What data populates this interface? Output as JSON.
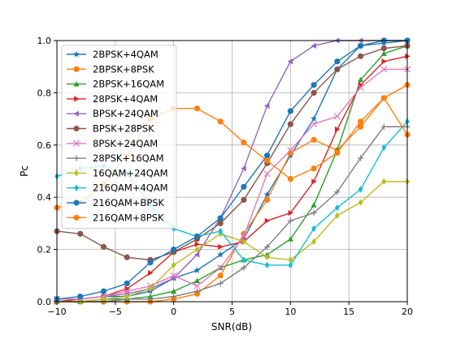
{
  "chart_data": {
    "type": "line",
    "xlabel": "SNR(dB)",
    "ylabel": "Pc",
    "xlim": [
      -10,
      20
    ],
    "ylim": [
      0,
      1
    ],
    "xticks": [
      -10,
      -5,
      0,
      5,
      10,
      15,
      20
    ],
    "yticks": [
      0.0,
      0.2,
      0.4,
      0.6,
      0.8,
      1.0
    ],
    "xtick_labels": [
      "−10",
      "−5",
      "0",
      "5",
      "10",
      "15",
      "20"
    ],
    "ytick_labels": [
      "0.0",
      "0.2",
      "0.4",
      "0.6",
      "0.8",
      "1.0"
    ],
    "grid": true,
    "legend_position": "upper-left",
    "x": [
      -10,
      -8,
      -6,
      -4,
      -2,
      0,
      2,
      4,
      6,
      8,
      10,
      12,
      14,
      16,
      18,
      20
    ],
    "series": [
      {
        "name": "2BPSK+4QAM",
        "color": "#1f77b4",
        "marker": "star",
        "values": [
          0.01,
          0.01,
          0.02,
          0.02,
          0.04,
          0.09,
          0.12,
          0.18,
          0.24,
          0.41,
          0.56,
          0.7,
          0.89,
          0.98,
          0.99,
          1.0
        ]
      },
      {
        "name": "2BPSK+8PSK",
        "color": "#ff7f0e",
        "marker": "circle",
        "values": [
          0.0,
          0.0,
          0.0,
          0.0,
          0.0,
          0.01,
          0.03,
          0.1,
          0.26,
          0.39,
          0.57,
          0.62,
          0.58,
          0.67,
          0.78,
          0.83
        ]
      },
      {
        "name": "2BPSK+16QAM",
        "color": "#2ca02c",
        "marker": "triangle-up",
        "values": [
          0.0,
          0.0,
          0.01,
          0.01,
          0.02,
          0.04,
          0.08,
          0.13,
          0.16,
          0.18,
          0.24,
          0.37,
          0.58,
          0.85,
          0.95,
          0.98
        ]
      },
      {
        "name": "28PSK+4QAM",
        "color": "#d62728",
        "marker": "triangle-right",
        "values": [
          0.0,
          0.01,
          0.02,
          0.05,
          0.11,
          0.19,
          0.22,
          0.21,
          0.23,
          0.31,
          0.34,
          0.46,
          0.66,
          0.83,
          0.92,
          0.94
        ]
      },
      {
        "name": "BPSK+24QAM",
        "color": "#9467bd",
        "marker": "triangle-left",
        "values": [
          0.01,
          0.01,
          0.02,
          0.03,
          0.05,
          0.09,
          0.18,
          0.32,
          0.51,
          0.75,
          0.92,
          0.98,
          1.0,
          1.0,
          1.0,
          1.0
        ]
      },
      {
        "name": "BPSK+28PSK",
        "color": "#8c564b",
        "marker": "circle",
        "values": [
          0.27,
          0.26,
          0.21,
          0.17,
          0.16,
          0.19,
          0.24,
          0.3,
          0.39,
          0.53,
          0.68,
          0.8,
          0.89,
          0.94,
          0.97,
          0.98
        ]
      },
      {
        "name": "8PSK+24QAM",
        "color": "#e377c2",
        "marker": "x",
        "values": [
          0.01,
          0.01,
          0.02,
          0.04,
          0.06,
          0.1,
          0.06,
          0.13,
          0.25,
          0.49,
          0.58,
          0.68,
          0.71,
          0.82,
          0.89,
          0.89
        ]
      },
      {
        "name": "28PSK+16QAM",
        "color": "#7f7f7f",
        "marker": "plus",
        "values": [
          0.0,
          0.0,
          0.0,
          0.01,
          0.01,
          0.02,
          0.04,
          0.07,
          0.13,
          0.21,
          0.31,
          0.34,
          0.42,
          0.55,
          0.67,
          0.67
        ]
      },
      {
        "name": "16QAM+24QAM",
        "color": "#bcbd22",
        "marker": "diamond",
        "values": [
          0.0,
          0.0,
          0.01,
          0.02,
          0.05,
          0.14,
          0.2,
          0.26,
          0.23,
          0.17,
          0.16,
          0.23,
          0.33,
          0.38,
          0.46,
          0.46
        ]
      },
      {
        "name": "216QAM+4QAM",
        "color": "#17becf",
        "marker": "diamond",
        "values": [
          0.48,
          0.51,
          0.52,
          0.49,
          0.37,
          0.28,
          0.25,
          0.27,
          0.16,
          0.14,
          0.14,
          0.28,
          0.36,
          0.43,
          0.59,
          0.69
        ]
      },
      {
        "name": "216QAM+BPSK",
        "color": "#1f77b4",
        "marker": "circle",
        "values": [
          0.01,
          0.02,
          0.04,
          0.07,
          0.15,
          0.2,
          0.25,
          0.32,
          0.44,
          0.56,
          0.73,
          0.83,
          0.92,
          0.98,
          1.0,
          1.0
        ]
      },
      {
        "name": "216QAM+8PSK",
        "color": "#ff7f0e",
        "marker": "circle",
        "values": [
          0.36,
          0.38,
          0.45,
          0.56,
          0.7,
          0.74,
          0.74,
          0.69,
          0.61,
          0.54,
          0.47,
          0.51,
          0.57,
          0.69,
          0.78,
          0.64
        ]
      }
    ]
  }
}
